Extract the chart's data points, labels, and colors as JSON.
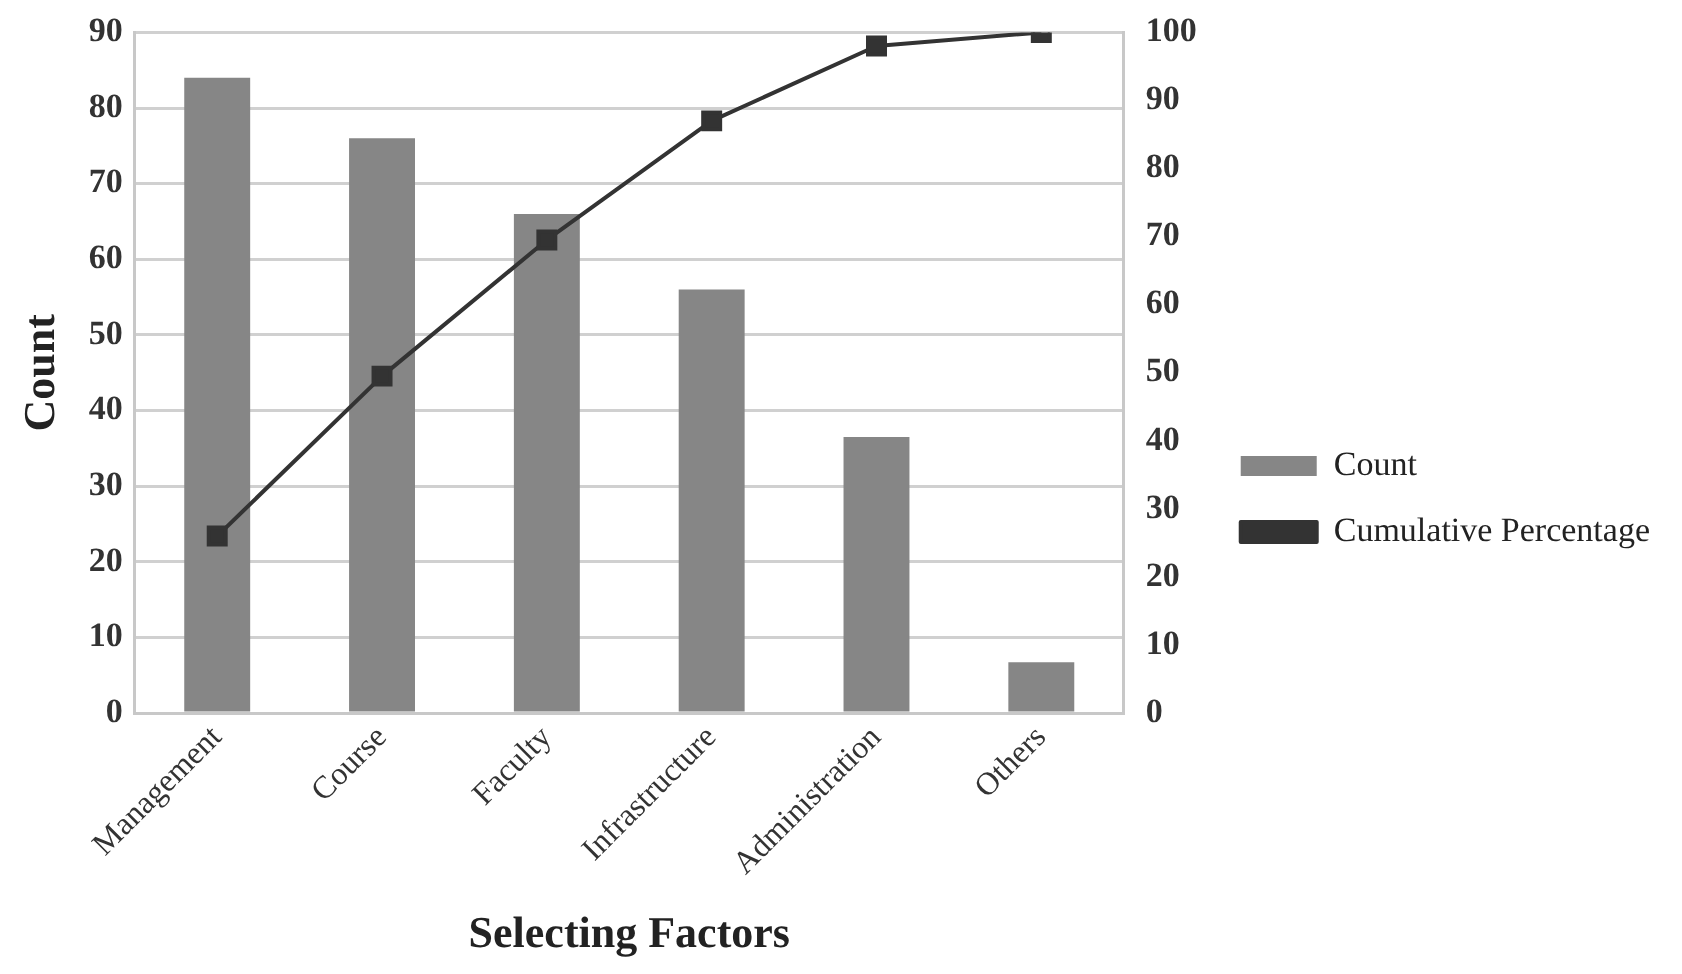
{
  "chart_data": {
    "type": "bar",
    "xlabel": "Selecting Factors",
    "ylabel": "Count",
    "categories": [
      "Management",
      "Course",
      "Faculty",
      "Infrastructure",
      "Administration",
      "Others"
    ],
    "series": [
      {
        "name": "Count",
        "color": "#868686",
        "values": [
          84,
          76,
          66,
          56,
          36.5,
          6.7
        ]
      },
      {
        "name": "Cumulative Percentage",
        "type": "line",
        "axis": "y2",
        "color": "#333333",
        "values": [
          26,
          49.5,
          69.5,
          87,
          98,
          100
        ]
      }
    ],
    "ylim": [
      0,
      90
    ],
    "yticks": [
      0,
      10,
      20,
      30,
      40,
      50,
      60,
      70,
      80,
      90
    ],
    "y2lim": [
      0,
      100
    ],
    "y2ticks": [
      0,
      10,
      20,
      30,
      40,
      50,
      60,
      70,
      80,
      90,
      100
    ],
    "grid": "y",
    "legend": "right",
    "marker": "square"
  }
}
